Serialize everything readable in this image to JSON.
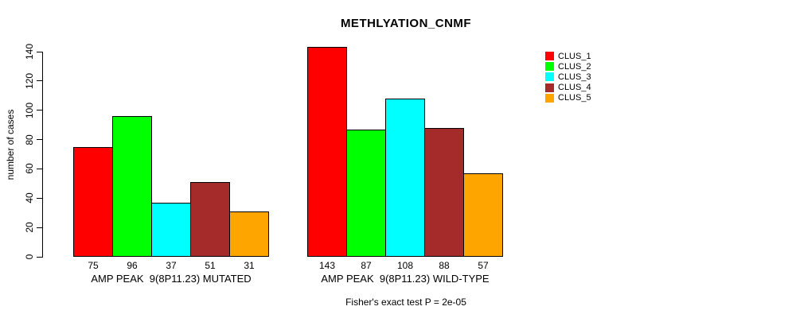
{
  "title": "METHLYATION_CNMF",
  "y_axis_label": "number of cases",
  "footnote": "Fisher's exact test P = 2e-05",
  "chart_data": {
    "type": "bar",
    "title": "METHLYATION_CNMF",
    "ylabel": "number of cases",
    "xlabel": "",
    "ylim": [
      0,
      140
    ],
    "yticks": [
      0,
      20,
      40,
      60,
      80,
      100,
      120,
      140
    ],
    "grid": false,
    "legend_position": "right",
    "categories": [
      "AMP PEAK  9(8P11.23) MUTATED",
      "AMP PEAK  9(8P11.23) WILD-TYPE"
    ],
    "series": [
      {
        "name": "CLUS_1",
        "color": "#FF0000",
        "values": [
          75,
          143
        ]
      },
      {
        "name": "CLUS_2",
        "color": "#00FF00",
        "values": [
          96,
          87
        ]
      },
      {
        "name": "CLUS_3",
        "color": "#00FFFF",
        "values": [
          37,
          108
        ]
      },
      {
        "name": "CLUS_4",
        "color": "#A52A2A",
        "values": [
          51,
          88
        ]
      },
      {
        "name": "CLUS_5",
        "color": "#FFA500",
        "values": [
          31,
          57
        ]
      }
    ],
    "bar_value_labels": [
      [
        75,
        96,
        37,
        51,
        31
      ],
      [
        143,
        87,
        108,
        88,
        57
      ]
    ],
    "annotation": "Fisher's exact test P = 2e-05"
  }
}
